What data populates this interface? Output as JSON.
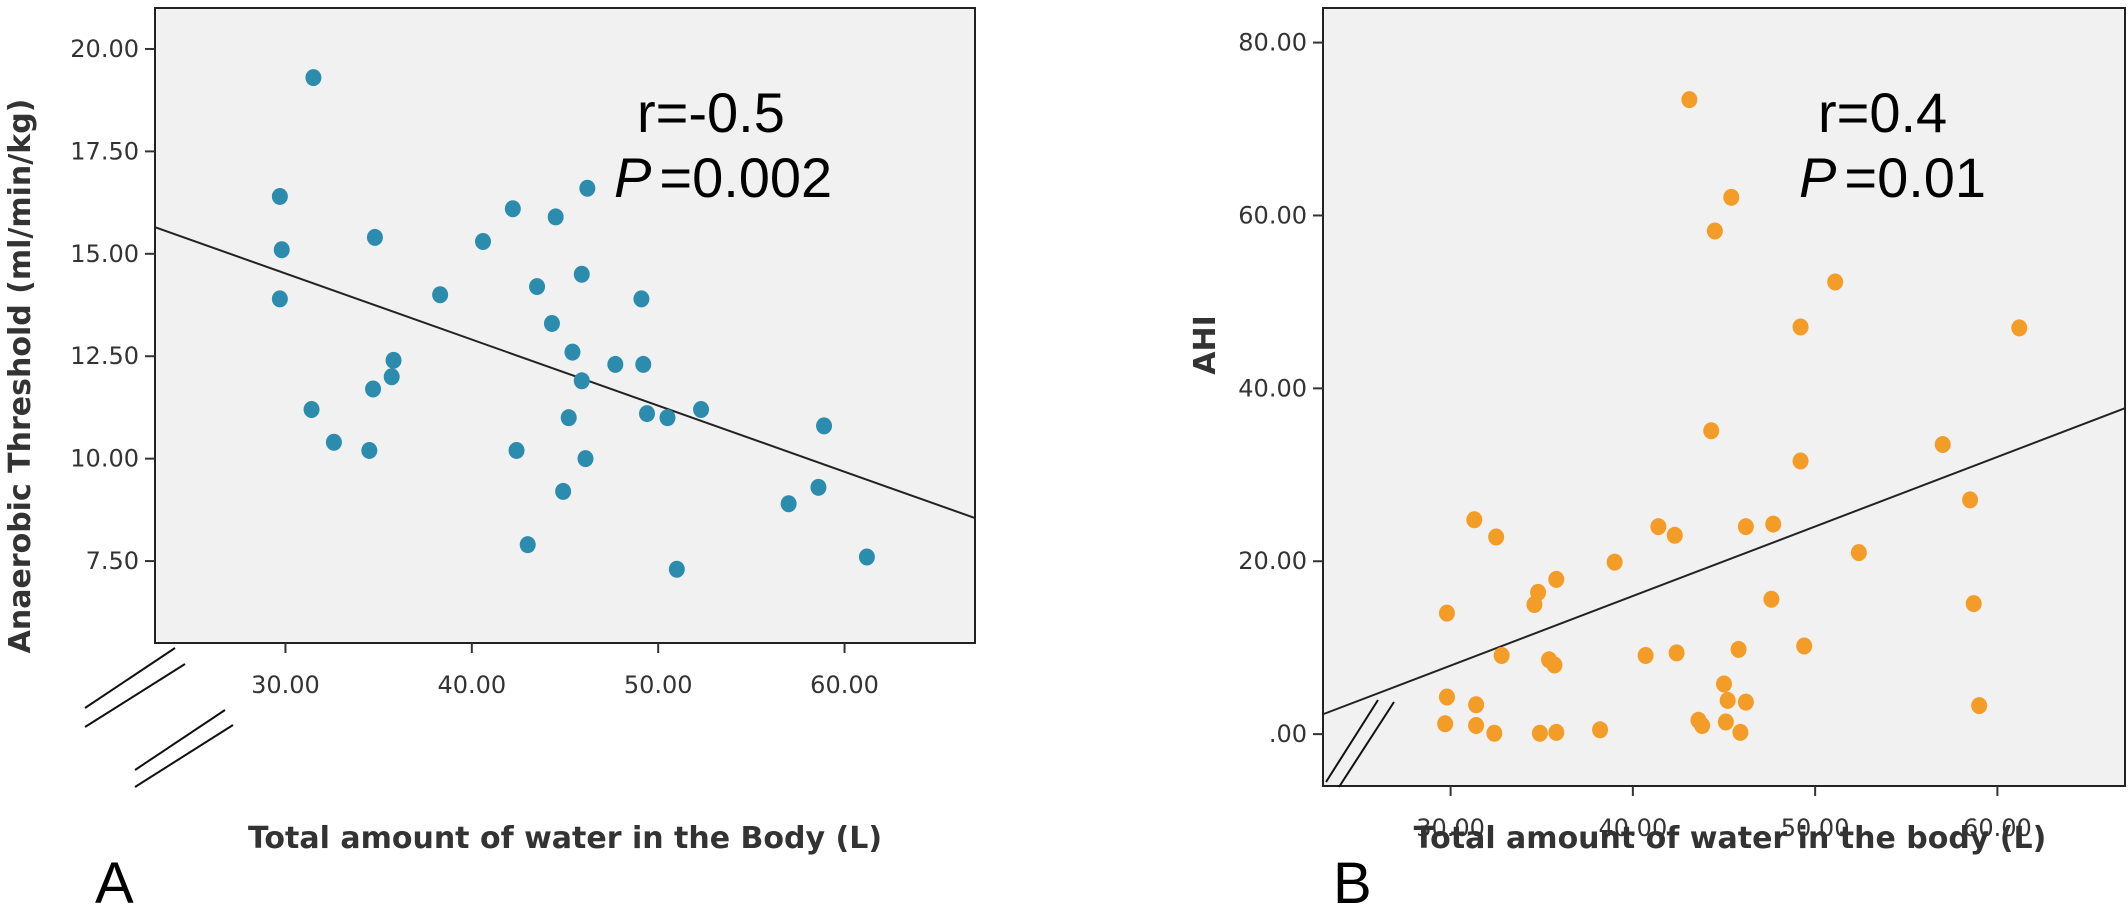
{
  "chart_data": [
    {
      "type": "scatter",
      "panel_label": "A",
      "xlabel": "Total amount of water in the Body (L)",
      "ylabel": "Anaerobic Threshold (ml/min/kg)",
      "xlim": [
        23,
        67
      ],
      "ylim": [
        5.5,
        21
      ],
      "xticks": [
        30,
        40,
        50,
        60
      ],
      "xtick_labels": [
        "30.00",
        "40.00",
        "50.00",
        "60.00"
      ],
      "yticks": [
        7.5,
        10,
        12.5,
        15,
        17.5,
        20
      ],
      "ytick_labels": [
        "7.50",
        "10.00",
        "12.50",
        "15.00",
        "17.50",
        "20.00"
      ],
      "annotation": {
        "r": "r=-0.5",
        "p_symbol": "P",
        "p_value": "=0.002"
      },
      "point_color": "#2b8cae",
      "fit_line": {
        "x": [
          23,
          67
        ],
        "y": [
          15.65,
          8.55
        ]
      },
      "x": [
        31.5,
        29.7,
        29.8,
        29.7,
        34.8,
        31.4,
        32.6,
        34.5,
        34.7,
        35.7,
        35.8,
        38.3,
        40.6,
        42.2,
        42.4,
        43.0,
        43.5,
        44.3,
        44.5,
        44.9,
        45.2,
        45.4,
        45.9,
        45.9,
        46.1,
        46.2,
        47.7,
        49.1,
        49.2,
        49.4,
        50.5,
        51.0,
        52.3,
        57.0,
        58.6,
        58.9,
        61.2
      ],
      "y": [
        19.3,
        16.4,
        15.1,
        13.9,
        15.4,
        11.2,
        10.4,
        10.2,
        11.7,
        12.0,
        12.4,
        14.0,
        15.3,
        16.1,
        10.2,
        7.9,
        14.2,
        13.3,
        15.9,
        9.2,
        11.0,
        12.6,
        14.5,
        11.9,
        10.0,
        16.6,
        12.3,
        13.9,
        12.3,
        11.1,
        11.0,
        7.3,
        11.2,
        8.9,
        9.3,
        10.8,
        7.6
      ]
    },
    {
      "type": "scatter",
      "panel_label": "B",
      "xlabel": "Total amount of water in the body (L)",
      "ylabel": "AHI",
      "xlim": [
        23,
        67
      ],
      "ylim": [
        -6,
        84
      ],
      "xticks": [
        30,
        40,
        50,
        60
      ],
      "xtick_labels": [
        "30.00",
        "40.00",
        "50.00",
        "60.00"
      ],
      "yticks": [
        0,
        20,
        40,
        60,
        80
      ],
      "ytick_labels": [
        ".00",
        "20.00",
        "40.00",
        "60.00",
        "80.00"
      ],
      "annotation": {
        "r": "r=0.4",
        "p_symbol": "P",
        "p_value": "=0.01"
      },
      "point_color": "#f39c28",
      "fit_line": {
        "x": [
          23,
          67
        ],
        "y": [
          2.3,
          37.7
        ]
      },
      "x": [
        29.8,
        29.8,
        29.7,
        31.3,
        31.4,
        31.4,
        32.5,
        32.8,
        32.4,
        34.6,
        34.8,
        34.9,
        35.4,
        35.8,
        35.7,
        35.8,
        38.2,
        39.0,
        40.7,
        41.4,
        42.3,
        42.4,
        43.1,
        43.6,
        43.8,
        44.3,
        44.5,
        45.0,
        45.1,
        45.2,
        45.4,
        45.8,
        45.9,
        46.2,
        46.2,
        47.6,
        47.7,
        49.2,
        49.2,
        49.4,
        51.1,
        52.4,
        57.0,
        58.5,
        58.7,
        59.0,
        61.2
      ],
      "y": [
        14.0,
        4.3,
        1.2,
        24.8,
        3.4,
        1.0,
        22.8,
        9.1,
        0.1,
        15.0,
        16.4,
        0.1,
        8.6,
        17.9,
        8.0,
        0.2,
        0.5,
        19.9,
        9.1,
        24.0,
        23.0,
        9.4,
        73.4,
        1.6,
        1.0,
        35.1,
        58.2,
        5.8,
        1.4,
        3.9,
        62.1,
        9.8,
        0.2,
        24.0,
        3.7,
        15.6,
        24.3,
        47.1,
        31.6,
        10.2,
        52.3,
        21.0,
        33.5,
        27.1,
        15.1,
        3.3,
        47.0
      ]
    }
  ]
}
